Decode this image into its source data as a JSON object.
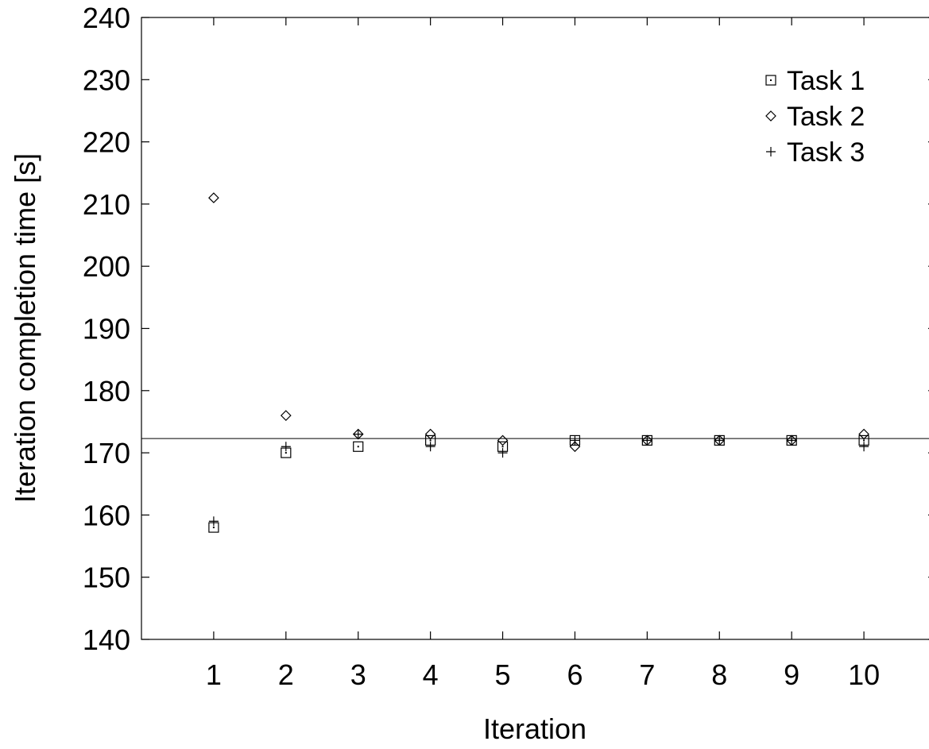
{
  "chart_data": {
    "type": "scatter",
    "title": "",
    "xlabel": "Iteration",
    "ylabel": "Iteration completion time [s]",
    "xlim": [
      0,
      11
    ],
    "ylim": [
      140,
      240
    ],
    "x_ticks": [
      1,
      2,
      3,
      4,
      5,
      6,
      7,
      8,
      9,
      10
    ],
    "y_ticks": [
      140,
      150,
      160,
      170,
      180,
      190,
      200,
      210,
      220,
      230,
      240
    ],
    "grid": false,
    "legend_position": "top-right",
    "reference_line": 172.3,
    "series": [
      {
        "name": "Task 1",
        "marker": "square",
        "x": [
          1,
          2,
          3,
          4,
          5,
          6,
          7,
          8,
          9,
          10
        ],
        "y": [
          158,
          170,
          171,
          172,
          171,
          172,
          172,
          172,
          172,
          172
        ]
      },
      {
        "name": "Task 2",
        "marker": "diamond",
        "x": [
          1,
          2,
          3,
          4,
          5,
          6,
          7,
          8,
          9,
          10
        ],
        "y": [
          211,
          176,
          173,
          173,
          172,
          171,
          172,
          172,
          172,
          173
        ]
      },
      {
        "name": "Task 3",
        "marker": "plus",
        "x": [
          1,
          2,
          3,
          4,
          5,
          6,
          7,
          8,
          9,
          10
        ],
        "y": [
          159,
          171,
          173,
          171,
          170,
          172,
          172,
          172,
          172,
          171
        ]
      }
    ]
  }
}
